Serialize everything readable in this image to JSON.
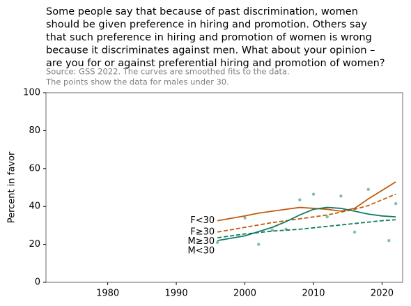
{
  "chart_data": {
    "type": "line",
    "title": [
      "Some people say that because of past discrimination, women",
      "should be given preference in hiring and promotion. Others say",
      "that such preference in hiring and promotion of women is wrong",
      "because it discriminates against men.  What about your opinion –",
      "are you for or against preferential hiring and promotion of women?"
    ],
    "subtitle": [
      "Source: GSS 2022. The curves are smoothed fits to the data.",
      "The points show the data for males under 30."
    ],
    "ylabel": "Percent in favor",
    "xlim": [
      1971,
      2023
    ],
    "xticks": [
      1980,
      1990,
      2000,
      2010,
      2020
    ],
    "ylim": [
      0,
      100
    ],
    "yticks": [
      0,
      20,
      40,
      60,
      80,
      100
    ],
    "series": [
      {
        "name": "F<30",
        "color": "#c05a10",
        "dash": false,
        "x": [
          1996,
          2000,
          2002,
          2004,
          2006,
          2008,
          2010,
          2012,
          2014,
          2016,
          2018,
          2020,
          2022
        ],
        "values": [
          32.5,
          35,
          36.5,
          37.5,
          38.5,
          39.5,
          39,
          38.5,
          37.5,
          39,
          44,
          48.5,
          53
        ]
      },
      {
        "name": "F≥30",
        "color": "#c05a10",
        "dash": true,
        "x": [
          1996,
          2000,
          2004,
          2008,
          2012,
          2016,
          2018,
          2020,
          2022
        ],
        "values": [
          26.5,
          29,
          31.5,
          33.5,
          35.5,
          38.5,
          40.5,
          43.5,
          46.5
        ]
      },
      {
        "name": "M≥30",
        "color": "#137a63",
        "dash": true,
        "x": [
          1996,
          2000,
          2004,
          2008,
          2012,
          2016,
          2020,
          2022
        ],
        "values": [
          23.5,
          25.5,
          27,
          28,
          29.5,
          31,
          32.5,
          33
        ]
      },
      {
        "name": "M<30",
        "color": "#137a63",
        "dash": false,
        "x": [
          1996,
          2000,
          2004,
          2006,
          2008,
          2010,
          2012,
          2014,
          2016,
          2018,
          2020,
          2022
        ],
        "values": [
          22,
          24.5,
          29,
          32,
          35.5,
          38.5,
          39.5,
          39,
          37.5,
          36,
          35,
          34.5
        ]
      }
    ],
    "points": {
      "color": "#4fa383",
      "x": [
        1996,
        2000,
        2002,
        2004,
        2006,
        2008,
        2010,
        2012,
        2014,
        2016,
        2018,
        2021,
        2022
      ],
      "values": [
        21,
        34,
        20,
        27.5,
        28,
        43.5,
        46.5,
        34.5,
        45.5,
        26.5,
        49,
        22,
        41.5
      ]
    }
  }
}
